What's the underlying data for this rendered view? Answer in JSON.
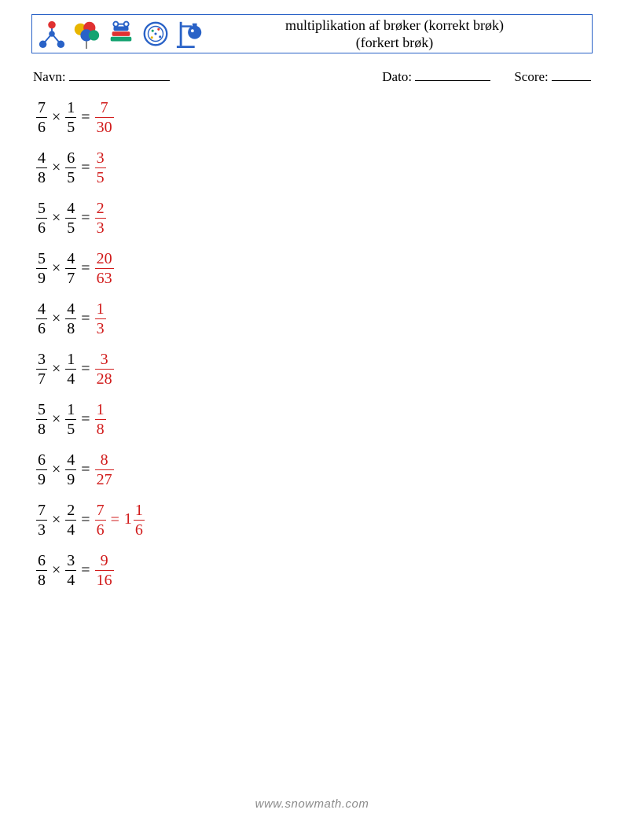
{
  "title_line1": "multiplikation af brøker (korrekt brøk)",
  "title_line2": "(forkert brøk)",
  "labels": {
    "name": "Navn:",
    "date": "Dato:",
    "score": "Score:"
  },
  "blanks": {
    "name_w": 128,
    "date_w": 96,
    "score_w": 50
  },
  "colors": {
    "answer": "#d11b1b",
    "border": "#2962c7",
    "text": "#000000",
    "footer": "#8c8c8c"
  },
  "font": {
    "body_pt": 18,
    "problem_pt": 20
  },
  "footer": "www.snowmath.com",
  "problems": [
    {
      "a": {
        "n": 7,
        "d": 6
      },
      "b": {
        "n": 1,
        "d": 5
      },
      "ans": [
        {
          "n": 7,
          "d": 30
        }
      ]
    },
    {
      "a": {
        "n": 4,
        "d": 8
      },
      "b": {
        "n": 6,
        "d": 5
      },
      "ans": [
        {
          "n": 3,
          "d": 5
        }
      ]
    },
    {
      "a": {
        "n": 5,
        "d": 6
      },
      "b": {
        "n": 4,
        "d": 5
      },
      "ans": [
        {
          "n": 2,
          "d": 3
        }
      ]
    },
    {
      "a": {
        "n": 5,
        "d": 9
      },
      "b": {
        "n": 4,
        "d": 7
      },
      "ans": [
        {
          "n": 20,
          "d": 63
        }
      ]
    },
    {
      "a": {
        "n": 4,
        "d": 6
      },
      "b": {
        "n": 4,
        "d": 8
      },
      "ans": [
        {
          "n": 1,
          "d": 3
        }
      ]
    },
    {
      "a": {
        "n": 3,
        "d": 7
      },
      "b": {
        "n": 1,
        "d": 4
      },
      "ans": [
        {
          "n": 3,
          "d": 28
        }
      ]
    },
    {
      "a": {
        "n": 5,
        "d": 8
      },
      "b": {
        "n": 1,
        "d": 5
      },
      "ans": [
        {
          "n": 1,
          "d": 8
        }
      ]
    },
    {
      "a": {
        "n": 6,
        "d": 9
      },
      "b": {
        "n": 4,
        "d": 9
      },
      "ans": [
        {
          "n": 8,
          "d": 27
        }
      ]
    },
    {
      "a": {
        "n": 7,
        "d": 3
      },
      "b": {
        "n": 2,
        "d": 4
      },
      "ans": [
        {
          "n": 7,
          "d": 6
        },
        {
          "whole": 1,
          "n": 1,
          "d": 6
        }
      ]
    },
    {
      "a": {
        "n": 6,
        "d": 8
      },
      "b": {
        "n": 3,
        "d": 4
      },
      "ans": [
        {
          "n": 9,
          "d": 16
        }
      ]
    }
  ]
}
